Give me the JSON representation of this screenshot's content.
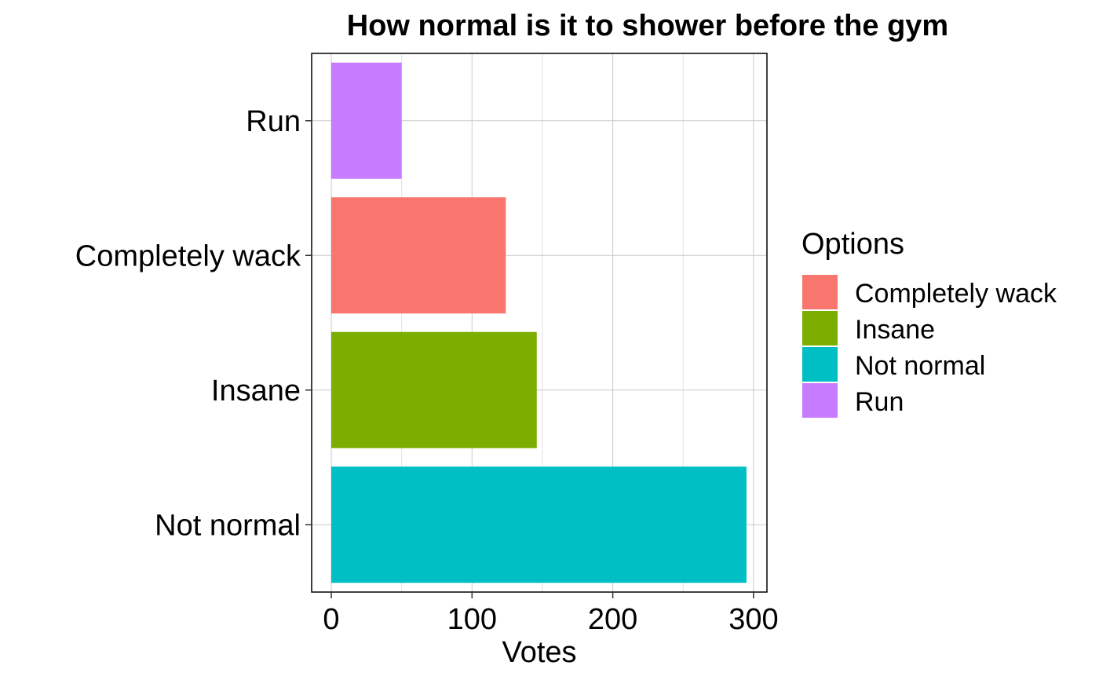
{
  "chart_data": {
    "type": "bar",
    "orientation": "horizontal",
    "title": "How normal is it to shower before the gym",
    "xlabel": "Votes",
    "ylabel": "",
    "xlim": [
      0,
      300
    ],
    "x_ticks": [
      0,
      100,
      200,
      300
    ],
    "grid": true,
    "categories": [
      "Not normal",
      "Insane",
      "Completely wack",
      "Run"
    ],
    "values": [
      295,
      146,
      124,
      50
    ],
    "colors": {
      "Completely wack": "#F8766D",
      "Insane": "#7CAE00",
      "Not normal": "#00BFC4",
      "Run": "#C77CFF"
    },
    "legend": {
      "title": "Options",
      "placement": "right",
      "entries": [
        "Completely wack",
        "Insane",
        "Not normal",
        "Run"
      ]
    }
  }
}
